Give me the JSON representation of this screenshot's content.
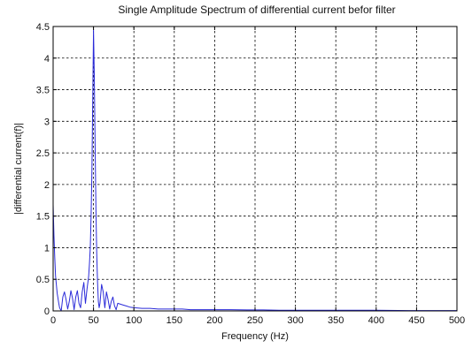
{
  "chart_data": {
    "type": "line",
    "title": "Single Amplitude Spectrum of differential current befor filter",
    "xlabel": "Frequency (Hz)",
    "ylabel": "|differential current(f)|",
    "xlim": [
      0,
      500
    ],
    "ylim": [
      0,
      4.5
    ],
    "grid": true,
    "xticks": [
      0,
      50,
      100,
      150,
      200,
      250,
      300,
      350,
      400,
      450,
      500
    ],
    "yticks": [
      0,
      0.5,
      1,
      1.5,
      2,
      2.5,
      3,
      3.5,
      4,
      4.5
    ],
    "xtick_labels": [
      "0",
      "50",
      "100",
      "150",
      "200",
      "250",
      "300",
      "350",
      "400",
      "450",
      "500"
    ],
    "ytick_labels": [
      "0",
      "0.5",
      "1",
      "1.5",
      "2",
      "2.5",
      "3",
      "3.5",
      "4",
      "4.5"
    ],
    "line_color": "#2b2bd9",
    "series": [
      {
        "x": [
          0,
          1,
          2,
          3,
          5,
          7,
          8,
          10,
          12,
          14,
          16,
          18,
          20,
          22,
          24,
          26,
          28,
          30,
          32,
          34,
          36,
          38,
          40,
          42,
          44,
          45,
          46,
          47,
          48,
          49,
          50,
          51,
          52,
          53,
          54,
          55,
          56,
          57,
          58,
          60,
          62,
          64,
          66,
          68,
          70,
          72,
          74,
          76,
          78,
          80,
          85,
          90,
          95,
          100,
          110,
          120,
          130,
          140,
          150,
          160,
          170,
          180,
          190,
          200,
          210,
          220,
          240,
          260,
          280,
          300,
          330,
          360,
          400,
          440,
          470,
          500
        ],
        "y": [
          1.68,
          1.2,
          0.85,
          0.55,
          0.28,
          0.12,
          0.05,
          0.0,
          0.22,
          0.3,
          0.18,
          0.03,
          0.15,
          0.32,
          0.2,
          0.02,
          0.22,
          0.32,
          0.12,
          0.05,
          0.3,
          0.45,
          0.12,
          0.35,
          0.55,
          0.75,
          1.0,
          1.5,
          2.2,
          3.3,
          4.45,
          3.7,
          2.6,
          1.6,
          0.9,
          0.45,
          0.15,
          0.05,
          0.12,
          0.42,
          0.3,
          0.05,
          0.3,
          0.18,
          0.03,
          0.15,
          0.22,
          0.08,
          0.02,
          0.12,
          0.1,
          0.08,
          0.06,
          0.05,
          0.04,
          0.04,
          0.03,
          0.03,
          0.03,
          0.03,
          0.02,
          0.02,
          0.02,
          0.02,
          0.02,
          0.02,
          0.015,
          0.015,
          0.01,
          0.01,
          0.01,
          0.01,
          0.01,
          0.005,
          0.005,
          0.005
        ]
      }
    ]
  }
}
